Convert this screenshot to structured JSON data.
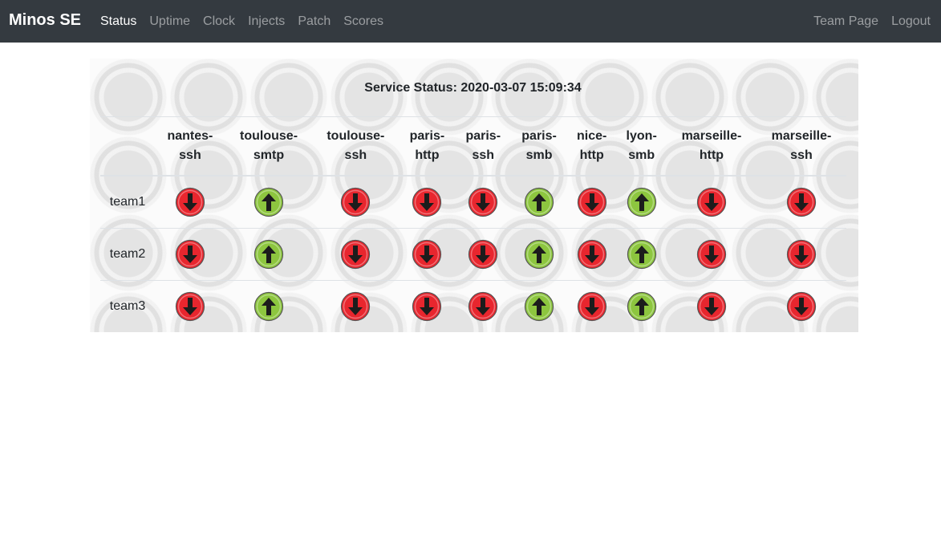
{
  "navbar": {
    "brand": "Minos SE",
    "links": [
      {
        "label": "Status",
        "active": true
      },
      {
        "label": "Uptime",
        "active": false
      },
      {
        "label": "Clock",
        "active": false
      },
      {
        "label": "Injects",
        "active": false
      },
      {
        "label": "Patch",
        "active": false
      },
      {
        "label": "Scores",
        "active": false
      }
    ],
    "right_links": [
      {
        "label": "Team Page"
      },
      {
        "label": "Logout"
      }
    ]
  },
  "status": {
    "title": "Service Status: 2020-03-07 15:09:34",
    "services": [
      {
        "line1": "nantes-",
        "line2": "ssh"
      },
      {
        "line1": "toulouse-",
        "line2": "smtp"
      },
      {
        "line1": "toulouse-",
        "line2": "ssh"
      },
      {
        "line1": "paris-",
        "line2": "http"
      },
      {
        "line1": "paris-",
        "line2": "ssh"
      },
      {
        "line1": "paris-",
        "line2": "smb"
      },
      {
        "line1": "nice-",
        "line2": "http"
      },
      {
        "line1": "lyon-",
        "line2": "smb"
      },
      {
        "line1": "marseille-",
        "line2": "http"
      },
      {
        "line1": "marseille-",
        "line2": "ssh"
      }
    ],
    "teams": [
      {
        "name": "team1",
        "states": [
          "down",
          "up",
          "down",
          "down",
          "down",
          "up",
          "down",
          "up",
          "down",
          "down"
        ]
      },
      {
        "name": "team2",
        "states": [
          "down",
          "up",
          "down",
          "down",
          "down",
          "up",
          "down",
          "up",
          "down",
          "down"
        ]
      },
      {
        "name": "team3",
        "states": [
          "down",
          "up",
          "down",
          "down",
          "down",
          "up",
          "down",
          "up",
          "down",
          "down"
        ]
      }
    ],
    "colors": {
      "up": "#8dc63f",
      "down": "#e8262e"
    }
  }
}
